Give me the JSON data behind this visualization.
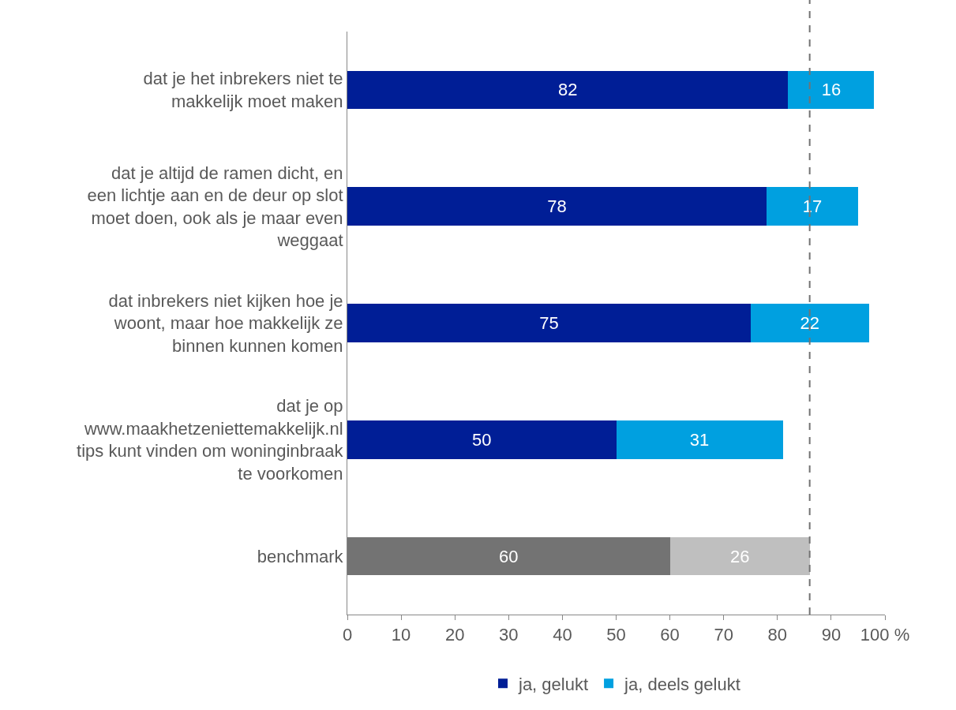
{
  "chart_data": {
    "type": "bar",
    "orientation": "horizontal",
    "stacked": true,
    "categories": [
      "dat je het inbrekers niet te makkelijk moet maken",
      "dat je altijd de ramen dicht, en een lichtje aan en de deur op slot moet doen, ook als je maar even weggaat",
      "dat inbrekers niet kijken hoe je woont, maar hoe makkelijk ze binnen kunnen komen",
      "dat je op www.maakhetzeniettemakkelijk.nl tips kunt vinden om woninginbraak te voorkomen",
      "benchmark"
    ],
    "series": [
      {
        "name": "ja, gelukt",
        "colors": [
          "#001e96",
          "#001e96",
          "#001e96",
          "#001e96",
          "#737373"
        ],
        "values": [
          82,
          78,
          75,
          50,
          60
        ]
      },
      {
        "name": "ja, deels gelukt",
        "colors": [
          "#00a0e0",
          "#00a0e0",
          "#00a0e0",
          "#00a0e0",
          "#bfbfbf"
        ],
        "values": [
          16,
          17,
          22,
          31,
          26
        ]
      }
    ],
    "xlim": [
      0,
      100
    ],
    "xticks": [
      0,
      10,
      20,
      30,
      40,
      50,
      60,
      70,
      80,
      90,
      {
        "value": 100,
        "label": "100 %"
      }
    ],
    "ref_lines": [
      {
        "axis": "x",
        "value": 86,
        "color": "#737373",
        "line_style": "dashed"
      }
    ],
    "data_labels": true,
    "grid": false,
    "legend": "bottom"
  }
}
